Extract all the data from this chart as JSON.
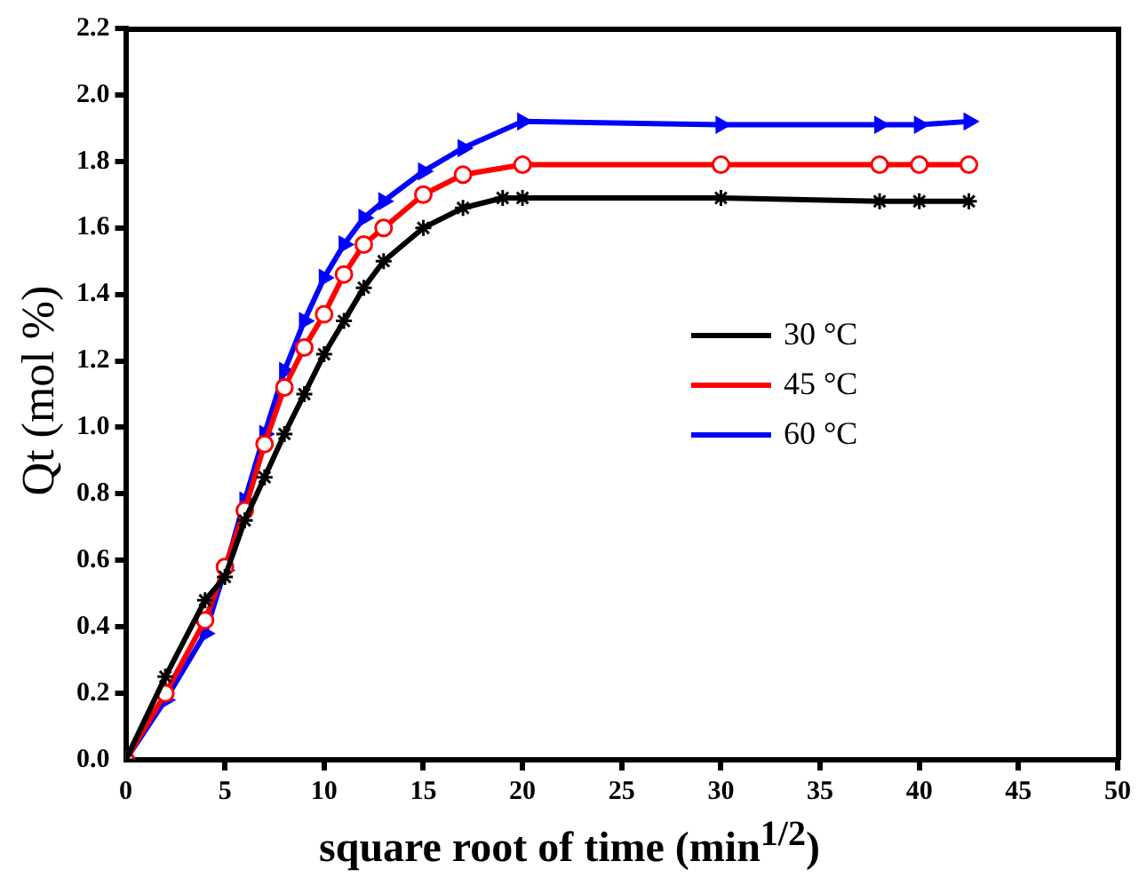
{
  "chart_data": {
    "type": "line",
    "xlabel": "square root of time (min$^{1/2}$)",
    "ylabel": "Qt (mol %)",
    "xlim": [
      0,
      50
    ],
    "xticks": [
      0,
      5,
      10,
      15,
      20,
      25,
      30,
      35,
      40,
      45,
      50
    ],
    "ylim": [
      0,
      2.2
    ],
    "yticks": [
      {
        "value": 0,
        "label": "0.0"
      },
      0.2,
      0.4,
      0.6,
      0.8,
      {
        "value": 1,
        "label": "1.0"
      },
      1.2,
      1.4,
      1.6,
      1.8,
      {
        "value": 2,
        "label": "2.0"
      },
      2.2
    ],
    "legend": "right",
    "grid": false,
    "line_style": "solid",
    "series": [
      {
        "name": "30 °C",
        "color": "#000000",
        "marker": "cross",
        "x": [
          0,
          2,
          4,
          5,
          6,
          7,
          8,
          9,
          10,
          11,
          12,
          13,
          15,
          17,
          19,
          20,
          30,
          38,
          40,
          42.5
        ],
        "values": [
          0,
          0.25,
          0.48,
          0.55,
          0.72,
          0.85,
          0.98,
          1.1,
          1.22,
          1.32,
          1.42,
          1.5,
          1.6,
          1.66,
          1.69,
          1.69,
          1.69,
          1.68,
          1.68,
          1.68
        ]
      },
      {
        "name": "45 °C",
        "color": "#ff0000",
        "marker": "circle",
        "x": [
          0,
          2,
          4,
          5,
          6,
          7,
          8,
          9,
          10,
          11,
          12,
          13,
          15,
          17,
          20,
          30,
          38,
          40,
          42.5
        ],
        "values": [
          0,
          0.2,
          0.42,
          0.58,
          0.75,
          0.95,
          1.12,
          1.24,
          1.34,
          1.46,
          1.55,
          1.6,
          1.7,
          1.76,
          1.79,
          1.79,
          1.79,
          1.79,
          1.79
        ]
      },
      {
        "name": "60 °C",
        "color": "#0000ff",
        "marker": "triangle",
        "x": [
          0,
          2,
          4,
          5,
          6,
          7,
          8,
          9,
          10,
          11,
          12,
          13,
          15,
          17,
          20,
          30,
          38,
          40,
          42.5
        ],
        "values": [
          0,
          0.18,
          0.38,
          0.57,
          0.78,
          0.98,
          1.17,
          1.32,
          1.45,
          1.55,
          1.63,
          1.68,
          1.77,
          1.84,
          1.92,
          1.91,
          1.91,
          1.91,
          1.92
        ]
      }
    ]
  }
}
